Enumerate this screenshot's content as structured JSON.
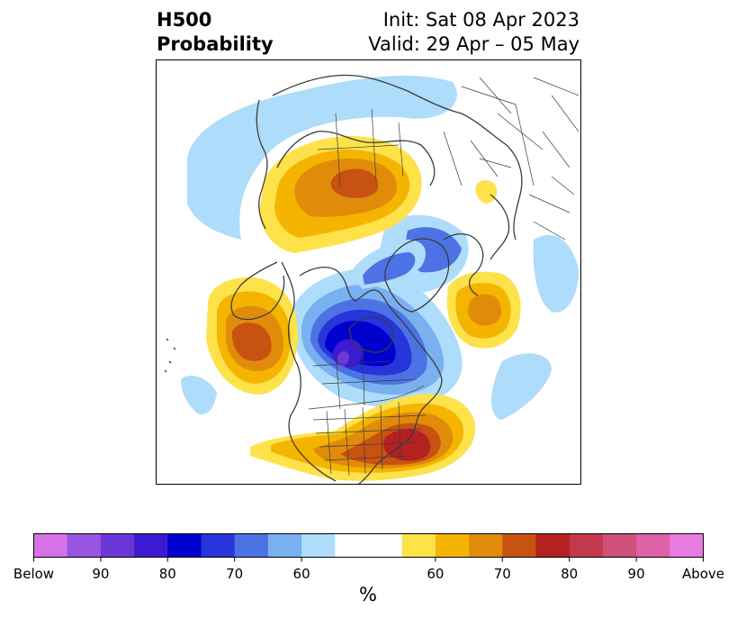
{
  "title": {
    "left_line1": "H500",
    "left_line2": "Probability",
    "right_line1": "Init: Sat 08 Apr 2023",
    "right_line2": "Valid: 29 Apr – 05 May"
  },
  "colorbar": {
    "colors": [
      "#d771e8",
      "#9a55e0",
      "#6b38d8",
      "#3b1ad2",
      "#0000cf",
      "#2636da",
      "#4c72e4",
      "#79b0f0",
      "#aedcfb",
      "#ffffff",
      "#ffffff",
      "#fde24a",
      "#f4b400",
      "#e08c0a",
      "#c85212",
      "#b52020",
      "#c2384c",
      "#cf5078",
      "#dd62a8",
      "#e67ce0"
    ],
    "tick_labels": [
      "Below",
      "90",
      "80",
      "70",
      "60",
      "60",
      "70",
      "80",
      "90",
      "Above"
    ],
    "unit": "%"
  },
  "map": {
    "projection": "north-polar-stereographic",
    "anomalies": [
      {
        "name": "canadian-arctic-ridge",
        "sign": "above",
        "max_category": "70"
      },
      {
        "name": "gulf-of-alaska-ridge",
        "sign": "above",
        "max_category": "70"
      },
      {
        "name": "north-atlantic-ridge",
        "sign": "above",
        "max_category": "70"
      },
      {
        "name": "southeast-us-ridge",
        "sign": "above",
        "max_category": "80"
      },
      {
        "name": "central-canada-trough",
        "sign": "below",
        "max_category": "90"
      },
      {
        "name": "scandinavian-trough",
        "sign": "below",
        "max_category": "70"
      }
    ]
  }
}
